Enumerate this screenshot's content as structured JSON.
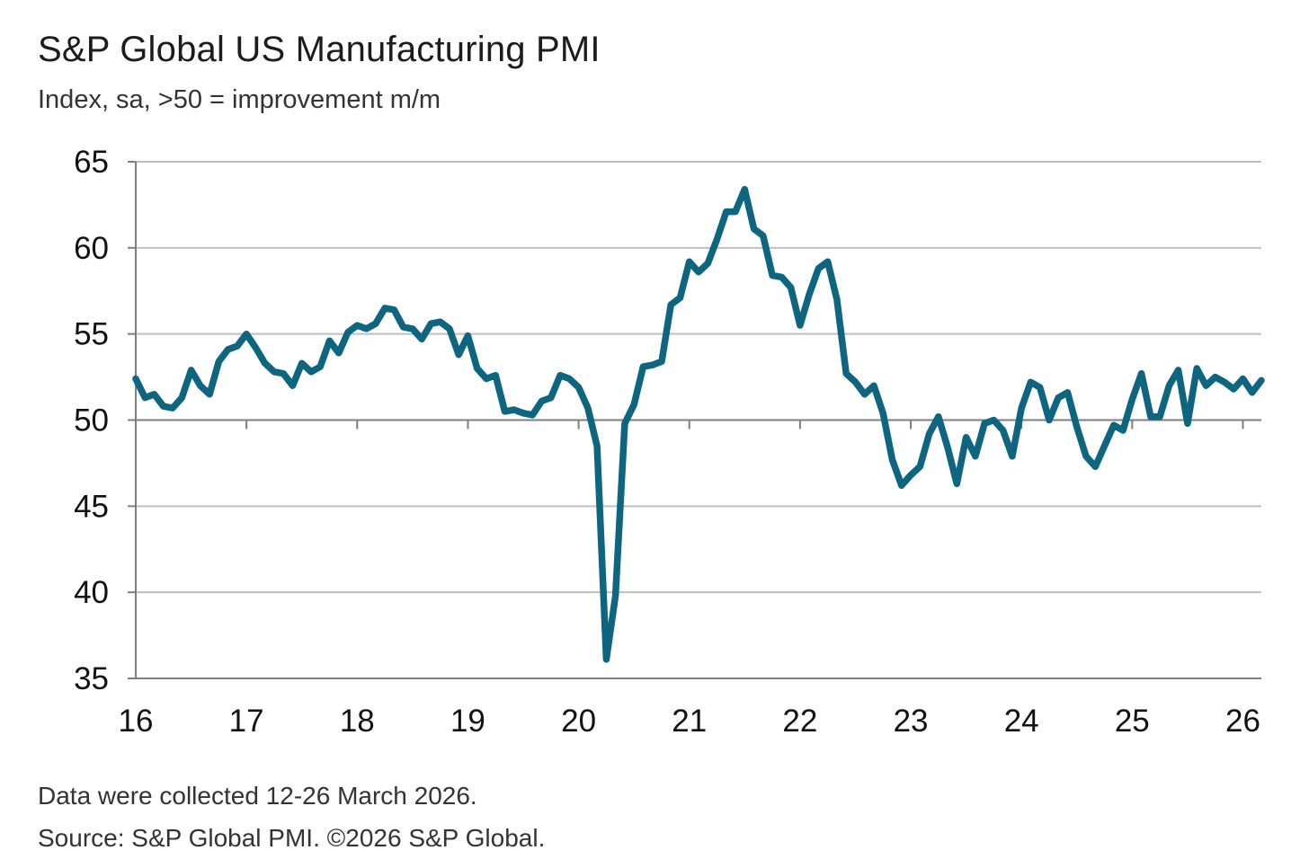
{
  "header": {
    "title": "S&P Global US Manufacturing PMI",
    "subtitle": "Index, sa, >50 = improvement m/m"
  },
  "footer": {
    "note": "Data were collected 12-26 March 2026.",
    "source": "Source: S&P Global PMI. ©2026 S&P Global."
  },
  "colors": {
    "line": "#0e6580",
    "grid": "#bfbfbf",
    "axis": "#7f7f7f"
  },
  "chart_data": {
    "type": "line",
    "title": "S&P Global US Manufacturing PMI",
    "subtitle": "Index, sa, >50 = improvement m/m",
    "xlabel": "",
    "ylabel": "",
    "x_start": "2016-01",
    "x_frequency": "monthly",
    "xlim": [
      "2016-01",
      "2026-03"
    ],
    "ylim": [
      35,
      65
    ],
    "yticks": [
      35,
      40,
      45,
      50,
      55,
      60,
      65
    ],
    "xtick_labels": [
      "16",
      "17",
      "18",
      "19",
      "20",
      "21",
      "22",
      "23",
      "24",
      "25",
      "26"
    ],
    "reference_line": 50,
    "grid": true,
    "legend": "none",
    "series": [
      {
        "values": [
          52.4,
          51.3,
          51.5,
          50.8,
          50.7,
          51.3,
          52.9,
          52.0,
          51.5,
          53.4,
          54.1,
          54.3,
          55.0,
          54.2,
          53.3,
          52.8,
          52.7,
          52.0,
          53.3,
          52.8,
          53.1,
          54.6,
          53.9,
          55.1,
          55.5,
          55.3,
          55.6,
          56.5,
          56.4,
          55.4,
          55.3,
          54.7,
          55.6,
          55.7,
          55.3,
          53.8,
          54.9,
          53.0,
          52.4,
          52.6,
          50.5,
          50.6,
          50.4,
          50.3,
          51.1,
          51.3,
          52.6,
          52.4,
          51.9,
          50.7,
          48.5,
          36.1,
          39.8,
          49.8,
          50.9,
          53.1,
          53.2,
          53.4,
          56.7,
          57.1,
          59.2,
          58.6,
          59.1,
          60.5,
          62.1,
          62.1,
          63.4,
          61.1,
          60.7,
          58.4,
          58.3,
          57.7,
          55.5,
          57.3,
          58.8,
          59.2,
          57.0,
          52.7,
          52.2,
          51.5,
          52.0,
          50.4,
          47.7,
          46.2,
          46.8,
          47.3,
          49.2,
          50.2,
          48.4,
          46.3,
          49.0,
          47.9,
          49.8,
          50.0,
          49.4,
          47.9,
          50.7,
          52.2,
          51.9,
          50.0,
          51.3,
          51.6,
          49.6,
          47.9,
          47.3,
          48.5,
          49.7,
          49.4,
          51.2,
          52.7,
          50.2,
          50.2,
          52.0,
          52.9,
          49.8,
          53.0,
          52.0,
          52.5,
          52.2,
          51.8,
          52.4,
          51.6,
          52.3
        ]
      }
    ]
  }
}
